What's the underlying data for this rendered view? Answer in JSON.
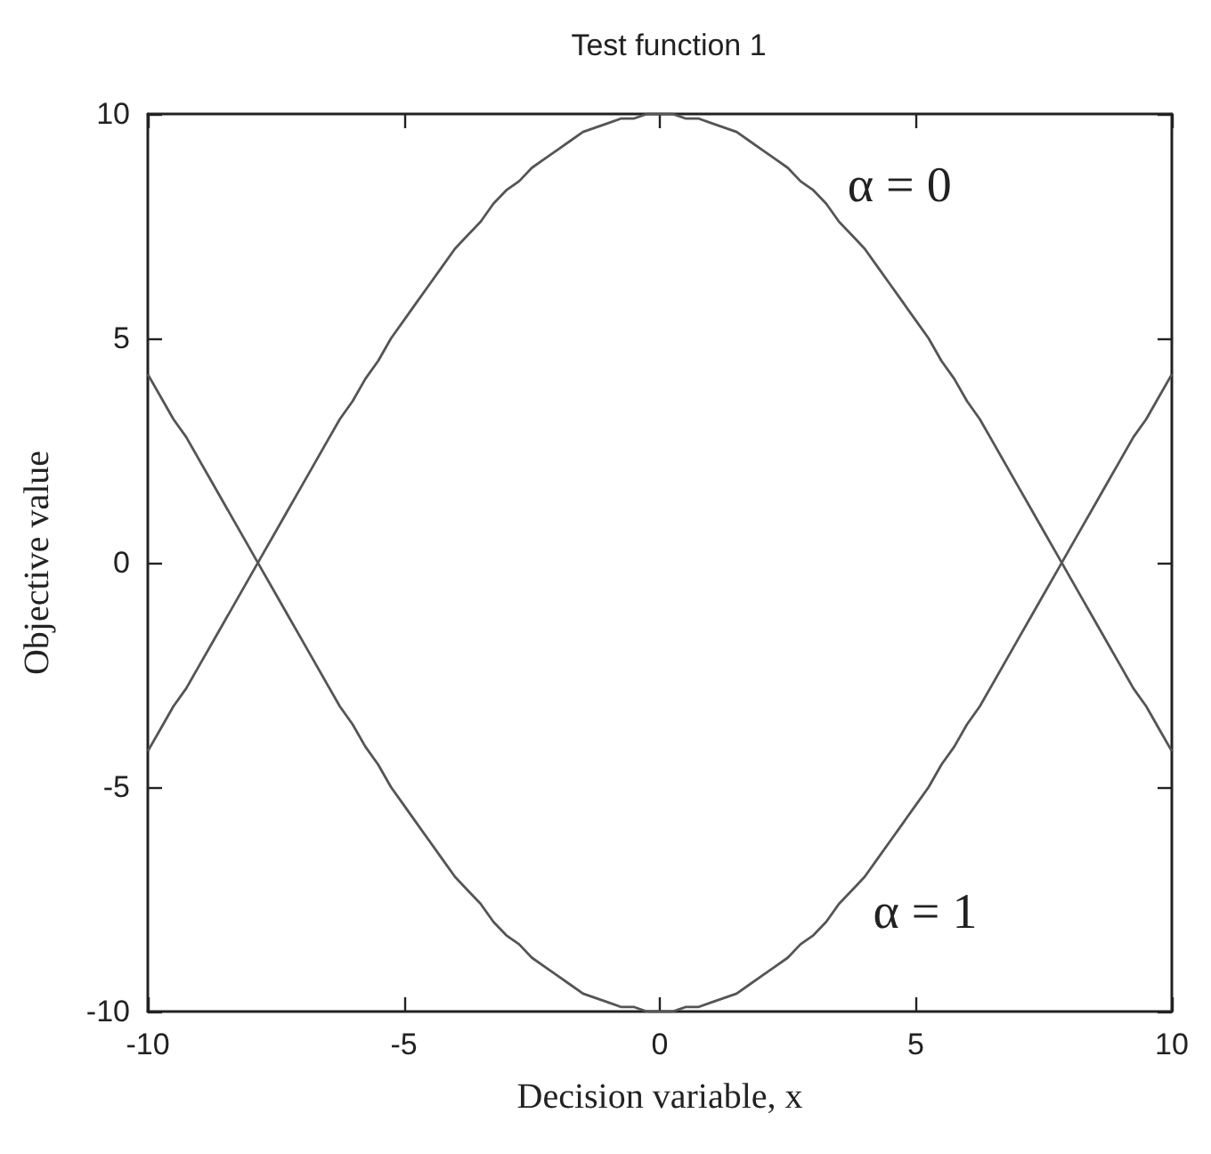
{
  "chart_data": {
    "type": "line",
    "title": "Test function 1",
    "xlabel": "Decision variable, x",
    "ylabel": "Objective value",
    "x": [
      -10,
      -9.75,
      -9.5,
      -9.25,
      -9,
      -8.75,
      -8.5,
      -8.25,
      -8,
      -7.75,
      -7.5,
      -7.25,
      -7,
      -6.75,
      -6.5,
      -6.25,
      -6,
      -5.75,
      -5.5,
      -5.25,
      -5,
      -4.75,
      -4.5,
      -4.25,
      -4,
      -3.75,
      -3.5,
      -3.25,
      -3,
      -2.75,
      -2.5,
      -2.25,
      -2,
      -1.75,
      -1.5,
      -1.25,
      -1,
      -0.75,
      -0.5,
      -0.25,
      0,
      0.25,
      0.5,
      0.75,
      1,
      1.25,
      1.5,
      1.75,
      2,
      2.25,
      2.5,
      2.75,
      3,
      3.25,
      3.5,
      3.75,
      4,
      4.25,
      4.5,
      4.75,
      5,
      5.25,
      5.5,
      5.75,
      6,
      6.25,
      6.5,
      6.75,
      7,
      7.25,
      7.5,
      7.75,
      8,
      8.25,
      8.5,
      8.75,
      9,
      9.25,
      9.5,
      9.75,
      10
    ],
    "series": [
      {
        "color": "#555555",
        "values": [
          -4.2,
          -3.7,
          -3.2,
          -2.8,
          -2.3,
          -1.8,
          -1.3,
          -0.8,
          -0.3,
          0.2,
          0.7,
          1.2,
          1.7,
          2.2,
          2.7,
          3.2,
          3.6,
          4.1,
          4.5,
          5.0,
          5.4,
          5.8,
          6.2,
          6.6,
          7.0,
          7.3,
          7.6,
          8.0,
          8.3,
          8.5,
          8.8,
          9.0,
          9.2,
          9.4,
          9.6,
          9.7,
          9.8,
          9.9,
          9.9,
          10.0,
          10,
          10.0,
          9.9,
          9.9,
          9.8,
          9.7,
          9.6,
          9.4,
          9.2,
          9.0,
          8.8,
          8.5,
          8.3,
          8.0,
          7.6,
          7.3,
          7.0,
          6.6,
          6.2,
          5.8,
          5.4,
          5.0,
          4.5,
          4.1,
          3.6,
          3.2,
          2.7,
          2.2,
          1.7,
          1.2,
          0.7,
          0.2,
          -0.3,
          -0.8,
          -1.3,
          -1.8,
          -2.3,
          -2.8,
          -3.2,
          -3.7,
          -4.2
        ]
      },
      {
        "color": "#555555",
        "values": [
          4.2,
          3.7,
          3.2,
          2.8,
          2.3,
          1.8,
          1.3,
          0.8,
          0.3,
          -0.2,
          -0.7,
          -1.2,
          -1.7,
          -2.2,
          -2.7,
          -3.2,
          -3.6,
          -4.1,
          -4.5,
          -5.0,
          -5.4,
          -5.8,
          -6.2,
          -6.6,
          -7.0,
          -7.3,
          -7.6,
          -8.0,
          -8.3,
          -8.5,
          -8.8,
          -9.0,
          -9.2,
          -9.4,
          -9.6,
          -9.7,
          -9.8,
          -9.9,
          -9.9,
          -10.0,
          -10,
          -10.0,
          -9.9,
          -9.9,
          -9.8,
          -9.7,
          -9.6,
          -9.4,
          -9.2,
          -9.0,
          -8.8,
          -8.5,
          -8.3,
          -8.0,
          -7.6,
          -7.3,
          -7.0,
          -6.6,
          -6.2,
          -5.8,
          -5.4,
          -5.0,
          -4.5,
          -4.1,
          -3.6,
          -3.2,
          -2.7,
          -2.2,
          -1.7,
          -1.2,
          -0.7,
          -0.2,
          0.3,
          0.8,
          1.3,
          1.8,
          2.3,
          2.8,
          3.2,
          3.7,
          4.2
        ]
      }
    ],
    "xlim": [
      -10,
      10
    ],
    "ylim": [
      -10,
      10
    ],
    "xticks": [
      -10,
      -5,
      0,
      5,
      10
    ],
    "yticks": [
      -10,
      -5,
      0,
      5,
      10
    ],
    "marker": "none",
    "line_style": "solid",
    "annotations": [
      {
        "text": "α = 0",
        "x": 2.9,
        "y": 8.4
      },
      {
        "text": "α = 1",
        "x": 3.4,
        "y": -7.8
      }
    ]
  }
}
